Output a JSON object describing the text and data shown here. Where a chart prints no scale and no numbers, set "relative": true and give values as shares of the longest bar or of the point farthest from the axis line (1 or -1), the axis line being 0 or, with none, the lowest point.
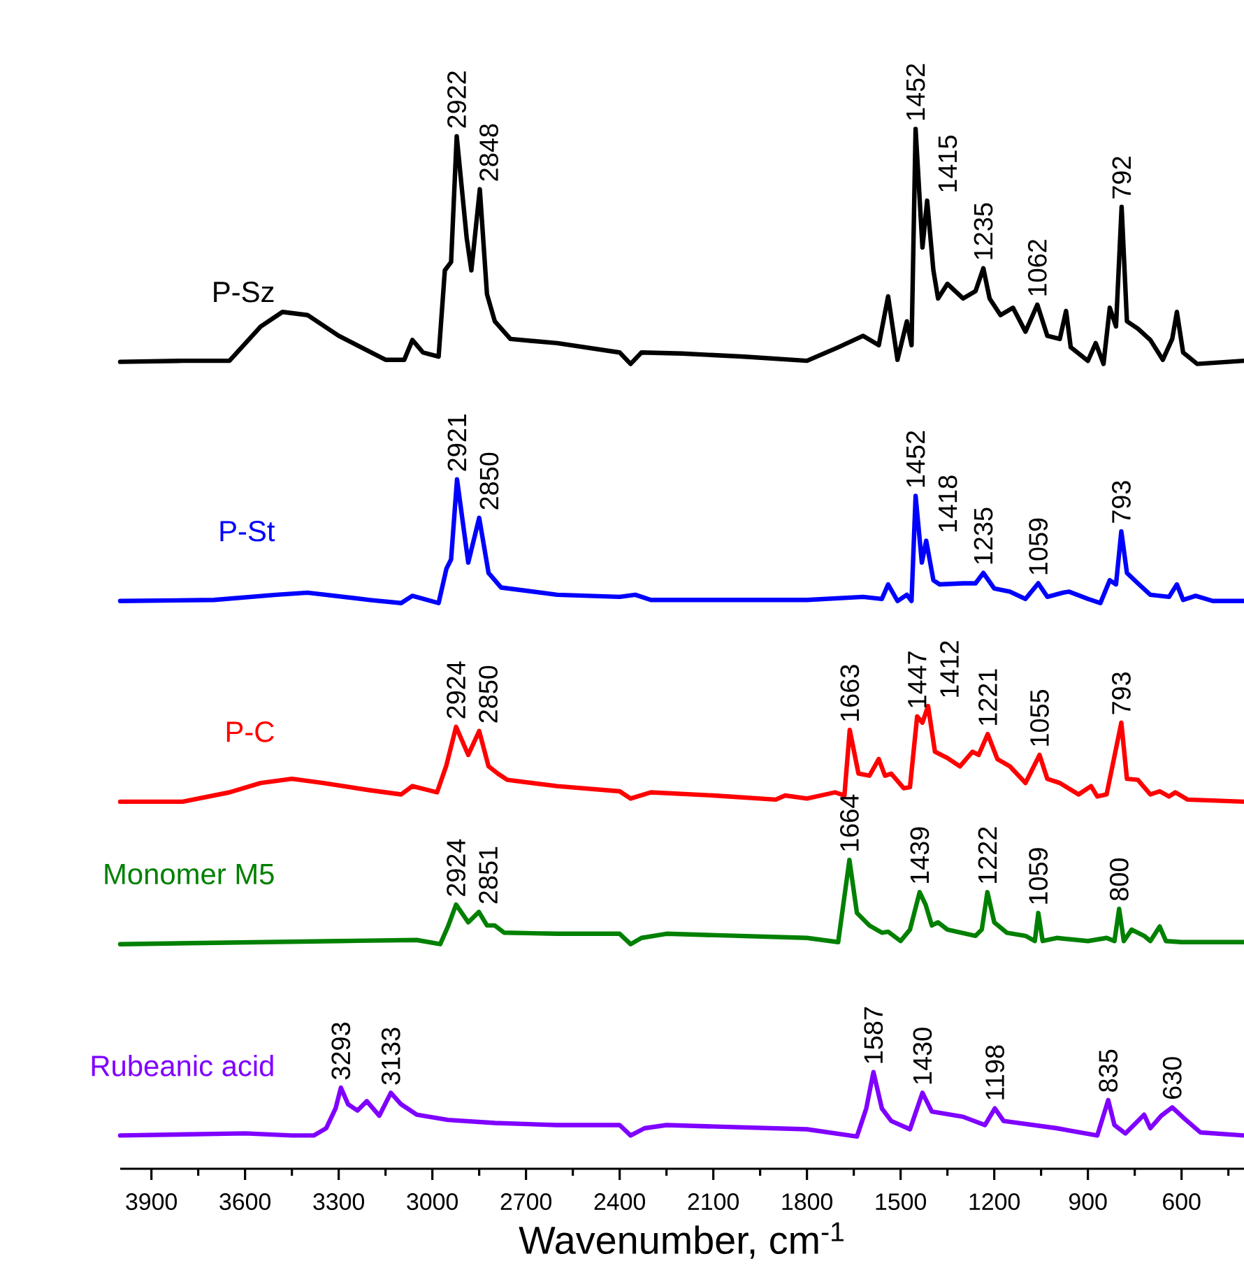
{
  "chart_data": {
    "type": "line",
    "relative": true,
    "xlabel": "Wavenumber, cm$^{-1}$",
    "xlim": [
      4000,
      400
    ],
    "xticks": [
      3900,
      {
        "value": 3750,
        "label": null
      },
      3600,
      {
        "value": 3450,
        "label": null
      },
      3300,
      {
        "value": 3150,
        "label": null
      },
      3000,
      {
        "value": 2850,
        "label": null
      },
      2700,
      {
        "value": 2550,
        "label": null
      },
      2400,
      {
        "value": 2250,
        "label": null
      },
      2100,
      {
        "value": 1950,
        "label": null
      },
      1800,
      {
        "value": 1650,
        "label": null
      },
      1500,
      {
        "value": 1350,
        "label": null
      },
      1200,
      {
        "value": 1050,
        "label": null
      },
      900,
      {
        "value": 750,
        "label": null
      },
      600,
      {
        "value": 450,
        "label": null
      }
    ],
    "series": [
      {
        "name": "P-Sz",
        "color": "#000000",
        "x": [
          4000,
          3800,
          3650,
          3550,
          3480,
          3400,
          3300,
          3150,
          3090,
          3064,
          3030,
          2980,
          2960,
          2940,
          2922,
          2890,
          2875,
          2848,
          2825,
          2800,
          2750,
          2600,
          2400,
          2365,
          2330,
          2200,
          2000,
          1800,
          1700,
          1620,
          1570,
          1540,
          1510,
          1480,
          1465,
          1452,
          1430,
          1415,
          1395,
          1380,
          1350,
          1300,
          1260,
          1235,
          1215,
          1180,
          1140,
          1100,
          1062,
          1030,
          990,
          970,
          955,
          900,
          875,
          850,
          830,
          810,
          792,
          775,
          740,
          700,
          660,
          630,
          615,
          595,
          550,
          400
        ],
        "values": [
          0.776,
          0.777,
          0.777,
          0.81,
          0.824,
          0.821,
          0.801,
          0.778,
          0.778,
          0.797,
          0.785,
          0.781,
          0.864,
          0.872,
          0.993,
          0.895,
          0.864,
          0.942,
          0.841,
          0.815,
          0.798,
          0.794,
          0.785,
          0.774,
          0.785,
          0.784,
          0.781,
          0.777,
          0.79,
          0.801,
          0.792,
          0.839,
          0.778,
          0.815,
          0.792,
          1.0,
          0.886,
          0.931,
          0.864,
          0.837,
          0.851,
          0.837,
          0.844,
          0.866,
          0.837,
          0.821,
          0.828,
          0.805,
          0.831,
          0.801,
          0.798,
          0.825,
          0.79,
          0.777,
          0.794,
          0.774,
          0.828,
          0.81,
          0.925,
          0.815,
          0.808,
          0.797,
          0.778,
          0.798,
          0.824,
          0.785,
          0.774,
          0.777
        ]
      },
      {
        "name": "P-St",
        "color": "#0000ff",
        "x": [
          4000,
          3700,
          3500,
          3400,
          3200,
          3100,
          3064,
          2980,
          2955,
          2940,
          2921,
          2885,
          2850,
          2820,
          2780,
          2600,
          2400,
          2350,
          2300,
          2200,
          1800,
          1620,
          1560,
          1540,
          1510,
          1480,
          1465,
          1452,
          1432,
          1418,
          1395,
          1375,
          1300,
          1260,
          1235,
          1200,
          1150,
          1100,
          1059,
          1030,
          980,
          960,
          900,
          860,
          830,
          810,
          793,
          775,
          740,
          700,
          640,
          615,
          595,
          555,
          500,
          400
        ],
        "values": [
          0.546,
          0.547,
          0.552,
          0.554,
          0.547,
          0.544,
          0.551,
          0.544,
          0.577,
          0.586,
          0.663,
          0.583,
          0.626,
          0.573,
          0.559,
          0.552,
          0.55,
          0.552,
          0.547,
          0.547,
          0.547,
          0.55,
          0.548,
          0.562,
          0.546,
          0.552,
          0.546,
          0.647,
          0.583,
          0.604,
          0.566,
          0.562,
          0.563,
          0.563,
          0.573,
          0.558,
          0.555,
          0.548,
          0.563,
          0.55,
          0.554,
          0.555,
          0.548,
          0.544,
          0.566,
          0.562,
          0.613,
          0.573,
          0.563,
          0.552,
          0.55,
          0.562,
          0.547,
          0.551,
          0.546,
          0.546
        ]
      },
      {
        "name": "P-C",
        "color": "#ff0000",
        "x": [
          4000,
          3800,
          3650,
          3550,
          3450,
          3350,
          3200,
          3100,
          3064,
          2985,
          2955,
          2924,
          2885,
          2850,
          2820,
          2790,
          2760,
          2600,
          2400,
          2365,
          2300,
          2100,
          1900,
          1870,
          1800,
          1710,
          1680,
          1663,
          1635,
          1600,
          1570,
          1550,
          1530,
          1490,
          1470,
          1447,
          1430,
          1412,
          1390,
          1350,
          1310,
          1270,
          1250,
          1221,
          1190,
          1150,
          1100,
          1055,
          1030,
          990,
          930,
          890,
          870,
          840,
          793,
          775,
          740,
          700,
          670,
          640,
          620,
          580,
          400
        ],
        "values": [
          0.353,
          0.353,
          0.362,
          0.371,
          0.375,
          0.371,
          0.364,
          0.36,
          0.368,
          0.362,
          0.388,
          0.425,
          0.398,
          0.421,
          0.387,
          0.38,
          0.374,
          0.368,
          0.363,
          0.356,
          0.362,
          0.359,
          0.355,
          0.359,
          0.356,
          0.362,
          0.359,
          0.422,
          0.38,
          0.378,
          0.394,
          0.378,
          0.38,
          0.366,
          0.367,
          0.435,
          0.429,
          0.445,
          0.401,
          0.395,
          0.387,
          0.401,
          0.398,
          0.418,
          0.394,
          0.387,
          0.371,
          0.398,
          0.375,
          0.371,
          0.36,
          0.368,
          0.358,
          0.36,
          0.429,
          0.375,
          0.374,
          0.36,
          0.363,
          0.358,
          0.362,
          0.355,
          0.353
        ]
      },
      {
        "name": "Monomer M5",
        "color": "#008000",
        "x": [
          4000,
          3300,
          3050,
          2975,
          2950,
          2924,
          2885,
          2851,
          2825,
          2800,
          2770,
          2600,
          2400,
          2365,
          2330,
          2250,
          1800,
          1700,
          1664,
          1640,
          1600,
          1560,
          1540,
          1500,
          1470,
          1439,
          1420,
          1400,
          1380,
          1350,
          1260,
          1240,
          1222,
          1200,
          1160,
          1100,
          1070,
          1059,
          1045,
          1000,
          900,
          840,
          815,
          800,
          785,
          760,
          720,
          700,
          670,
          650,
          600,
          400
        ],
        "values": [
          0.216,
          0.219,
          0.22,
          0.216,
          0.233,
          0.254,
          0.237,
          0.247,
          0.234,
          0.234,
          0.227,
          0.226,
          0.226,
          0.216,
          0.222,
          0.226,
          0.222,
          0.218,
          0.297,
          0.246,
          0.234,
          0.227,
          0.228,
          0.219,
          0.23,
          0.266,
          0.254,
          0.234,
          0.237,
          0.23,
          0.224,
          0.23,
          0.266,
          0.237,
          0.227,
          0.224,
          0.219,
          0.246,
          0.219,
          0.222,
          0.219,
          0.222,
          0.219,
          0.25,
          0.219,
          0.23,
          0.224,
          0.219,
          0.233,
          0.219,
          0.218,
          0.218
        ]
      },
      {
        "name": "Rubeanic acid",
        "color": "#7f00ff",
        "x": [
          4000,
          3600,
          3450,
          3380,
          3340,
          3310,
          3293,
          3270,
          3240,
          3210,
          3170,
          3133,
          3100,
          3050,
          2950,
          2800,
          2600,
          2400,
          2365,
          2320,
          2250,
          1800,
          1640,
          1610,
          1587,
          1560,
          1530,
          1470,
          1430,
          1400,
          1300,
          1230,
          1198,
          1170,
          1000,
          870,
          835,
          815,
          780,
          720,
          700,
          665,
          630,
          590,
          540,
          400
        ],
        "values": [
          0.032,
          0.034,
          0.032,
          0.032,
          0.039,
          0.058,
          0.078,
          0.062,
          0.056,
          0.065,
          0.051,
          0.073,
          0.062,
          0.052,
          0.047,
          0.044,
          0.042,
          0.042,
          0.032,
          0.039,
          0.042,
          0.038,
          0.031,
          0.058,
          0.093,
          0.058,
          0.046,
          0.038,
          0.073,
          0.055,
          0.05,
          0.042,
          0.058,
          0.046,
          0.039,
          0.032,
          0.066,
          0.042,
          0.034,
          0.052,
          0.039,
          0.051,
          0.059,
          0.048,
          0.035,
          0.032
        ]
      }
    ],
    "annotations": [
      {
        "text": "2922",
        "x": 2922,
        "y": 0.993
      },
      {
        "text": "2848",
        "x": 2848,
        "y": 0.942
      },
      {
        "text": "1452",
        "x": 1452,
        "y": 1.0
      },
      {
        "text": "1415",
        "x": 1415,
        "y": 0.931
      },
      {
        "text": "1235",
        "x": 1235,
        "y": 0.866
      },
      {
        "text": "1062",
        "x": 1062,
        "y": 0.831
      },
      {
        "text": "792",
        "x": 792,
        "y": 0.925
      },
      {
        "text": "2921",
        "x": 2921,
        "y": 0.663
      },
      {
        "text": "2850",
        "x": 2850,
        "y": 0.626
      },
      {
        "text": "1452",
        "x": 1452,
        "y": 0.647
      },
      {
        "text": "1418",
        "x": 1418,
        "y": 0.604
      },
      {
        "text": "1235",
        "x": 1235,
        "y": 0.573
      },
      {
        "text": "1059",
        "x": 1059,
        "y": 0.563
      },
      {
        "text": "793",
        "x": 793,
        "y": 0.613
      },
      {
        "text": "2924",
        "x": 2924,
        "y": 0.425
      },
      {
        "text": "2850",
        "x": 2850,
        "y": 0.421
      },
      {
        "text": "1663",
        "x": 1663,
        "y": 0.422
      },
      {
        "text": "1447",
        "x": 1447,
        "y": 0.435
      },
      {
        "text": "1412",
        "x": 1412,
        "y": 0.445
      },
      {
        "text": "1221",
        "x": 1221,
        "y": 0.418
      },
      {
        "text": "1055",
        "x": 1055,
        "y": 0.398
      },
      {
        "text": "793",
        "x": 793,
        "y": 0.429
      },
      {
        "text": "2924",
        "x": 2924,
        "y": 0.254
      },
      {
        "text": "2851",
        "x": 2851,
        "y": 0.247
      },
      {
        "text": "1664",
        "x": 1664,
        "y": 0.297
      },
      {
        "text": "1439",
        "x": 1439,
        "y": 0.266
      },
      {
        "text": "1222",
        "x": 1222,
        "y": 0.266
      },
      {
        "text": "1059",
        "x": 1059,
        "y": 0.246
      },
      {
        "text": "800",
        "x": 800,
        "y": 0.25
      },
      {
        "text": "3293",
        "x": 3293,
        "y": 0.078
      },
      {
        "text": "3133",
        "x": 3133,
        "y": 0.073
      },
      {
        "text": "1587",
        "x": 1587,
        "y": 0.093
      },
      {
        "text": "1430",
        "x": 1430,
        "y": 0.073
      },
      {
        "text": "1198",
        "x": 1198,
        "y": 0.058
      },
      {
        "text": "835",
        "x": 835,
        "y": 0.066
      },
      {
        "text": "630",
        "x": 630,
        "y": 0.059
      }
    ]
  }
}
